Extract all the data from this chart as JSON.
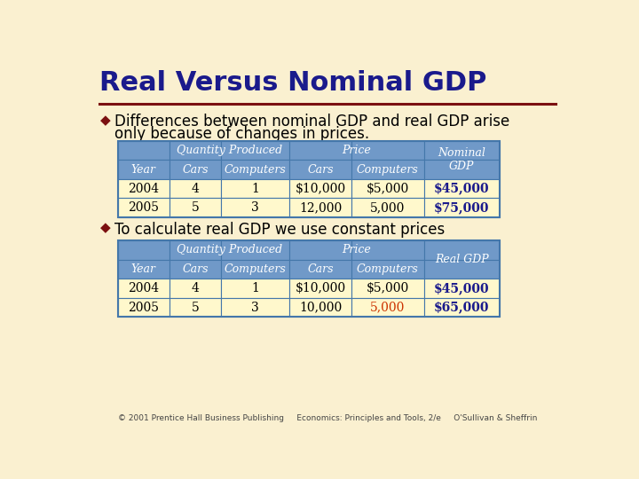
{
  "title": "Real Versus Nominal GDP",
  "bg_color": "#FAF0D0",
  "title_color": "#1a1a8c",
  "divider_color": "#7B1010",
  "bullet_color": "#7B1010",
  "bullet1_line1": "Differences between nominal GDP and real GDP arise",
  "bullet1_line2": "only because of changes in prices.",
  "bullet2": "To calculate real GDP we use constant prices",
  "table_header_bg": "#7099C8",
  "table_data_bg": "#FFF8CC",
  "table_border": "#4477AA",
  "header_text_color": "#FFFFFF",
  "data_text_color": "#000000",
  "gdp_bold_color": "#1a1a8c",
  "highlight_color": "#CC3300",
  "footer_text": "© 2001 Prentice Hall Business Publishing     Economics: Principles and Tools, 2/e     O'Sullivan & Sheffrin",
  "table1_data": [
    [
      "2004",
      "4",
      "1",
      "$10,000",
      "$5,000",
      "$45,000"
    ],
    [
      "2005",
      "5",
      "3",
      "12,000",
      "5,000",
      "$75,000"
    ]
  ],
  "table2_data": [
    [
      "2004",
      "4",
      "1",
      "$10,000",
      "$5,000",
      "$45,000"
    ],
    [
      "2005",
      "5",
      "3",
      "10,000",
      "5,000",
      "$65,000"
    ]
  ],
  "table1_last_col": "Nominal\nGDP",
  "table2_last_col": "Real GDP"
}
